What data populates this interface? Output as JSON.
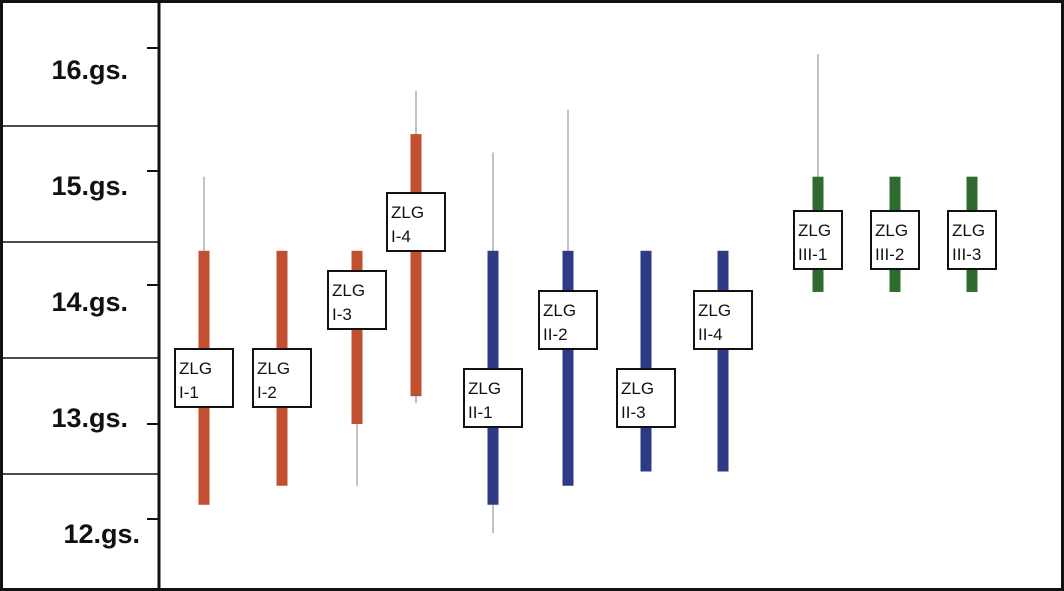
{
  "chart_data": {
    "type": "range",
    "title": "",
    "xlabel": "",
    "ylabel": "",
    "y_categories": [
      "16.gs.",
      "15.gs.",
      "14.gs.",
      "13.gs.",
      "12.gs."
    ],
    "ylim": [
      11.6,
      16.6
    ],
    "series": [
      {
        "color": "#c0502f",
        "items": [
          {
            "label_line1": "ZLG",
            "label_line2": "I-1",
            "bar": [
              12.15,
              14.3
            ],
            "whisker": [
              12.15,
              14.95
            ]
          },
          {
            "label_line1": "ZLG",
            "label_line2": "I-2",
            "bar": [
              12.35,
              14.3
            ],
            "whisker": [
              12.35,
              14.3
            ]
          },
          {
            "label_line1": "ZLG",
            "label_line2": "I-3",
            "bar": [
              13.0,
              14.3
            ],
            "whisker": [
              12.35,
              14.3
            ]
          },
          {
            "label_line1": "ZLG",
            "label_line2": "I-4",
            "bar": [
              13.2,
              15.3
            ],
            "whisker": [
              13.15,
              15.65
            ]
          }
        ]
      },
      {
        "color": "#2e3a86",
        "items": [
          {
            "label_line1": "ZLG",
            "label_line2": "II-1",
            "bar": [
              12.15,
              14.3
            ],
            "whisker": [
              11.85,
              15.15
            ]
          },
          {
            "label_line1": "ZLG",
            "label_line2": "II-2",
            "bar": [
              12.35,
              14.3
            ],
            "whisker": [
              12.35,
              15.5
            ]
          },
          {
            "label_line1": "ZLG",
            "label_line2": "II-3",
            "bar": [
              12.5,
              14.3
            ],
            "whisker": [
              12.5,
              14.3
            ]
          },
          {
            "label_line1": "ZLG",
            "label_line2": "II-4",
            "bar": [
              12.5,
              14.3
            ],
            "whisker": [
              12.5,
              14.3
            ]
          }
        ]
      },
      {
        "color": "#2f6b2f",
        "items": [
          {
            "label_line1": "ZLG",
            "label_line2": "III-1",
            "bar": [
              13.95,
              14.95
            ],
            "whisker": [
              13.95,
              15.95
            ]
          },
          {
            "label_line1": "ZLG",
            "label_line2": "III-2",
            "bar": [
              13.95,
              14.95
            ],
            "whisker": [
              13.95,
              14.95
            ]
          },
          {
            "label_line1": "ZLG",
            "label_line2": "III-3",
            "bar": [
              13.95,
              14.95
            ],
            "whisker": [
              13.95,
              14.95
            ]
          }
        ]
      }
    ],
    "grid": false,
    "legend": "none"
  }
}
